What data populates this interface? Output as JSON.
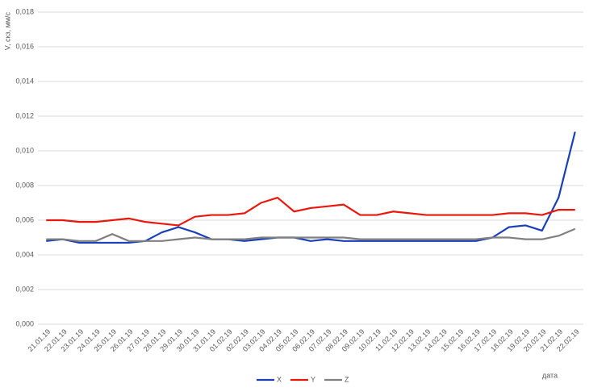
{
  "chart_data": {
    "type": "line",
    "y_label": "V, скз, мм/с",
    "x_label": "дата",
    "categories": [
      "21.01.19",
      "22.01.19",
      "23.01.19",
      "24.01.19",
      "25.01.19",
      "26.01.19",
      "27.01.19",
      "28.01.19",
      "29.01.19",
      "30.01.19",
      "31.01.19",
      "01.02.19",
      "02.02.19",
      "03.02.19",
      "04.02.19",
      "05.02.19",
      "06.02.19",
      "07.02.19",
      "08.02.19",
      "09.02.19",
      "10.02.19",
      "11.02.19",
      "12.02.19",
      "13.02.19",
      "14.02.19",
      "15.02.19",
      "16.02.19",
      "17.02.19",
      "18.02.19",
      "19.02.19",
      "20.02.19",
      "21.02.19",
      "22.02.19"
    ],
    "series": [
      {
        "name": "X",
        "color": "#1a3fb8",
        "values": [
          0.0048,
          0.0049,
          0.0047,
          0.0047,
          0.0047,
          0.0047,
          0.0048,
          0.0053,
          0.0056,
          0.0053,
          0.0049,
          0.0049,
          0.0048,
          0.0049,
          0.005,
          0.005,
          0.0048,
          0.0049,
          0.0048,
          0.0048,
          0.0048,
          0.0048,
          0.0048,
          0.0048,
          0.0048,
          0.0048,
          0.0048,
          0.005,
          0.0056,
          0.0057,
          0.0054,
          0.0073,
          0.0111
        ]
      },
      {
        "name": "Y",
        "color": "#e8190c",
        "values": [
          0.006,
          0.006,
          0.0059,
          0.0059,
          0.006,
          0.0061,
          0.0059,
          0.0058,
          0.0057,
          0.0062,
          0.0063,
          0.0063,
          0.0064,
          0.007,
          0.0073,
          0.0065,
          0.0067,
          0.0068,
          0.0069,
          0.0063,
          0.0063,
          0.0065,
          0.0064,
          0.0063,
          0.0063,
          0.0063,
          0.0063,
          0.0063,
          0.0064,
          0.0064,
          0.0063,
          0.0066,
          0.0066
        ]
      },
      {
        "name": "Z",
        "color": "#808080",
        "values": [
          0.0049,
          0.0049,
          0.0048,
          0.0048,
          0.0052,
          0.0048,
          0.0048,
          0.0048,
          0.0049,
          0.005,
          0.0049,
          0.0049,
          0.0049,
          0.005,
          0.005,
          0.005,
          0.005,
          0.005,
          0.005,
          0.0049,
          0.0049,
          0.0049,
          0.0049,
          0.0049,
          0.0049,
          0.0049,
          0.0049,
          0.005,
          0.005,
          0.0049,
          0.0049,
          0.0051,
          0.0055
        ]
      }
    ],
    "ylim": [
      0,
      0.018
    ],
    "yticks": [
      {
        "value": 0,
        "label": "0,000"
      },
      {
        "value": 0.002,
        "label": "0,002"
      },
      {
        "value": 0.004,
        "label": "0,004"
      },
      {
        "value": 0.006,
        "label": "0,006"
      },
      {
        "value": 0.008,
        "label": "0,008"
      },
      {
        "value": 0.01,
        "label": "0,010"
      },
      {
        "value": 0.012,
        "label": "0,012"
      },
      {
        "value": 0.014,
        "label": "0,014"
      },
      {
        "value": 0.016,
        "label": "0,016"
      },
      {
        "value": 0.018,
        "label": "0,018"
      }
    ],
    "grid": true
  }
}
